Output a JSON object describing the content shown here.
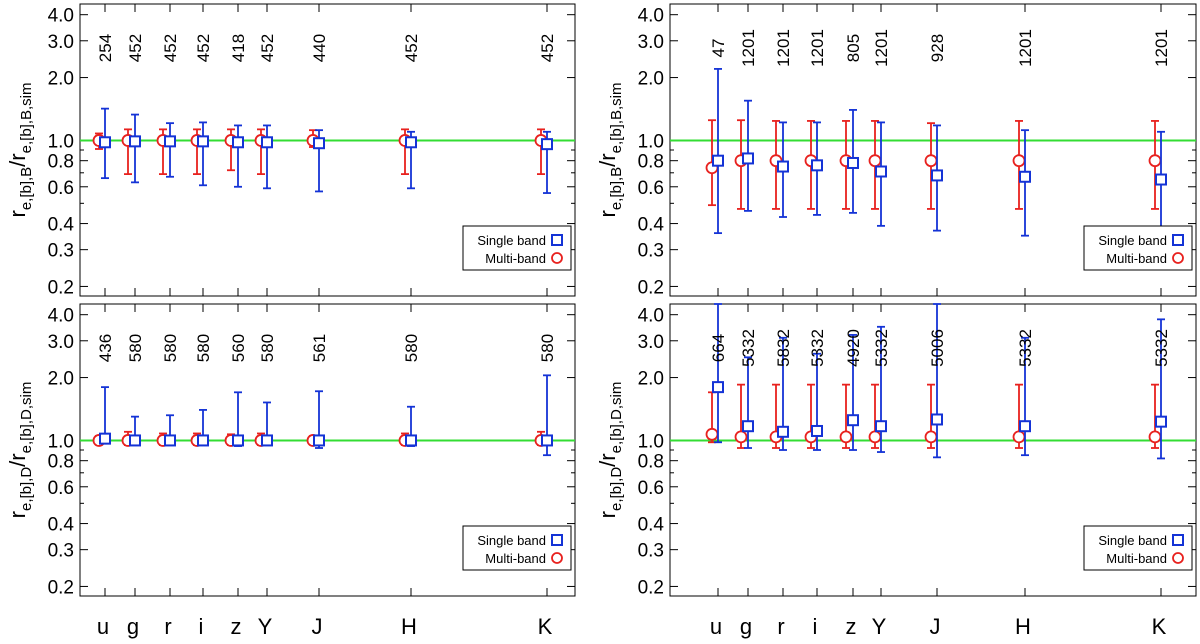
{
  "chart_data": [
    {
      "type": "scatter",
      "panel": "top-left",
      "ylabel_main": "r",
      "ylabel_sub1": "e,[b],B",
      "ylabel_mid": "/r",
      "ylabel_sub2": "e,[b],B,sim",
      "yscale": "log",
      "ylim": [
        0.18,
        4.5
      ],
      "yticks": [
        "0.2",
        "0.3",
        "0.4",
        "0.6",
        "0.8",
        "1.0",
        "2.0",
        "3.0",
        "4.0"
      ],
      "reference_line": 1.0,
      "bands": [
        "u",
        "g",
        "r",
        "i",
        "z",
        "Y",
        "J",
        "H",
        "K"
      ],
      "counts": [
        "254",
        "452",
        "452",
        "452",
        "418",
        "452",
        "440",
        "452",
        "452"
      ],
      "series": [
        {
          "name": "Multi-band",
          "marker": "circle",
          "color": "#e8211e",
          "values": [
            1.0,
            1.0,
            1.0,
            1.0,
            1.0,
            1.0,
            1.0,
            1.0,
            1.0
          ],
          "err_low": [
            0.91,
            0.69,
            0.69,
            0.69,
            0.72,
            0.69,
            0.93,
            0.69,
            0.69
          ],
          "err_high": [
            1.08,
            1.13,
            1.13,
            1.13,
            1.13,
            1.13,
            1.12,
            1.13,
            1.13
          ]
        },
        {
          "name": "Single band",
          "marker": "square",
          "color": "#1433d6",
          "values": [
            0.98,
            0.99,
            0.99,
            0.99,
            0.98,
            0.98,
            0.97,
            0.98,
            0.96
          ],
          "err_low": [
            0.66,
            0.63,
            0.67,
            0.61,
            0.6,
            0.59,
            0.57,
            0.59,
            0.56
          ],
          "err_high": [
            1.42,
            1.33,
            1.21,
            1.22,
            1.18,
            1.18,
            1.12,
            1.1,
            1.1
          ]
        }
      ],
      "legend": [
        {
          "label": "Single band",
          "marker": "square"
        },
        {
          "label": "Multi-band",
          "marker": "circle"
        }
      ]
    },
    {
      "type": "scatter",
      "panel": "top-right",
      "ylabel_main": "r",
      "ylabel_sub1": "e,[b],B",
      "ylabel_mid": "/r",
      "ylabel_sub2": "e,[b],B,sim",
      "yscale": "log",
      "ylim": [
        0.18,
        4.5
      ],
      "yticks": [
        "0.2",
        "0.3",
        "0.4",
        "0.6",
        "0.8",
        "1.0",
        "2.0",
        "3.0",
        "4.0"
      ],
      "reference_line": 1.0,
      "bands": [
        "u",
        "g",
        "r",
        "i",
        "z",
        "Y",
        "J",
        "H",
        "K"
      ],
      "counts": [
        "47",
        "1201",
        "1201",
        "1201",
        "805",
        "1201",
        "928",
        "1201",
        "1201"
      ],
      "series": [
        {
          "name": "Multi-band",
          "marker": "circle",
          "color": "#e8211e",
          "values": [
            0.74,
            0.8,
            0.8,
            0.8,
            0.8,
            0.8,
            0.8,
            0.8,
            0.8
          ],
          "err_low": [
            0.49,
            0.47,
            0.47,
            0.47,
            0.47,
            0.47,
            0.47,
            0.47,
            0.47
          ],
          "err_high": [
            1.25,
            1.25,
            1.24,
            1.24,
            1.24,
            1.24,
            1.21,
            1.24,
            1.24
          ]
        },
        {
          "name": "Single band",
          "marker": "square",
          "color": "#1433d6",
          "values": [
            0.8,
            0.82,
            0.75,
            0.76,
            0.78,
            0.71,
            0.68,
            0.67,
            0.65
          ],
          "err_low": [
            0.36,
            0.46,
            0.43,
            0.44,
            0.45,
            0.39,
            0.37,
            0.35,
            0.36
          ],
          "err_high": [
            2.2,
            1.55,
            1.22,
            1.22,
            1.4,
            1.22,
            1.18,
            1.12,
            1.1
          ]
        }
      ],
      "legend": [
        {
          "label": "Single band",
          "marker": "square"
        },
        {
          "label": "Multi-band",
          "marker": "circle"
        }
      ]
    },
    {
      "type": "scatter",
      "panel": "bottom-left",
      "ylabel_main": "r",
      "ylabel_sub1": "e,[b],D",
      "ylabel_mid": "/r",
      "ylabel_sub2": "e,[b],D,sim",
      "yscale": "log",
      "ylim": [
        0.18,
        4.5
      ],
      "yticks": [
        "0.2",
        "0.3",
        "0.4",
        "0.6",
        "0.8",
        "1.0",
        "2.0",
        "3.0",
        "4.0"
      ],
      "reference_line": 1.0,
      "bands": [
        "u",
        "g",
        "r",
        "i",
        "z",
        "Y",
        "J",
        "H",
        "K"
      ],
      "counts": [
        "436",
        "580",
        "580",
        "580",
        "560",
        "580",
        "561",
        "580",
        "580"
      ],
      "series": [
        {
          "name": "Multi-band",
          "marker": "circle",
          "color": "#e8211e",
          "values": [
            1.0,
            1.0,
            1.0,
            1.0,
            1.0,
            1.0,
            1.0,
            1.0,
            1.0
          ],
          "err_low": [
            0.97,
            0.95,
            0.95,
            0.95,
            0.95,
            0.95,
            0.96,
            0.95,
            0.95
          ],
          "err_high": [
            1.05,
            1.1,
            1.08,
            1.08,
            1.07,
            1.08,
            1.05,
            1.08,
            1.1
          ]
        },
        {
          "name": "Single band",
          "marker": "square",
          "color": "#1433d6",
          "values": [
            1.02,
            1.0,
            1.0,
            1.0,
            1.0,
            1.0,
            1.0,
            1.0,
            1.0
          ],
          "err_low": [
            0.99,
            0.96,
            0.97,
            0.97,
            0.94,
            0.95,
            0.92,
            0.94,
            0.85
          ],
          "err_high": [
            1.8,
            1.3,
            1.32,
            1.4,
            1.7,
            1.52,
            1.72,
            1.45,
            2.05
          ]
        }
      ],
      "legend": [
        {
          "label": "Single band",
          "marker": "square"
        },
        {
          "label": "Multi-band",
          "marker": "circle"
        }
      ]
    },
    {
      "type": "scatter",
      "panel": "bottom-right",
      "ylabel_main": "r",
      "ylabel_sub1": "e,[b],D",
      "ylabel_mid": "/r",
      "ylabel_sub2": "e,[b],D,sim",
      "yscale": "log",
      "ylim": [
        0.18,
        4.5
      ],
      "yticks": [
        "0.2",
        "0.3",
        "0.4",
        "0.6",
        "0.8",
        "1.0",
        "2.0",
        "3.0",
        "4.0"
      ],
      "reference_line": 1.0,
      "bands": [
        "u",
        "g",
        "r",
        "i",
        "z",
        "Y",
        "J",
        "H",
        "K"
      ],
      "counts": [
        "664",
        "5332",
        "5832",
        "5332",
        "4920",
        "5332",
        "5006",
        "5332",
        "5332"
      ],
      "series": [
        {
          "name": "Multi-band",
          "marker": "circle",
          "color": "#e8211e",
          "values": [
            1.07,
            1.04,
            1.04,
            1.04,
            1.04,
            1.04,
            1.04,
            1.04,
            1.04
          ],
          "err_low": [
            0.98,
            0.92,
            0.92,
            0.92,
            0.92,
            0.92,
            0.92,
            0.92,
            0.92
          ],
          "err_high": [
            1.7,
            1.85,
            1.85,
            1.85,
            1.85,
            1.85,
            1.85,
            1.85,
            1.85
          ]
        },
        {
          "name": "Single band",
          "marker": "square",
          "color": "#1433d6",
          "values": [
            1.8,
            1.17,
            1.1,
            1.11,
            1.25,
            1.17,
            1.26,
            1.17,
            1.23
          ],
          "err_low": [
            0.98,
            0.92,
            0.9,
            0.9,
            0.9,
            0.88,
            0.83,
            0.85,
            0.82
          ],
          "err_high": [
            4.5,
            2.5,
            3.1,
            2.6,
            3.2,
            3.5,
            4.5,
            3.1,
            3.8
          ]
        }
      ],
      "legend": [
        {
          "label": "Single band",
          "marker": "square"
        },
        {
          "label": "Multi-band",
          "marker": "circle"
        }
      ]
    }
  ]
}
